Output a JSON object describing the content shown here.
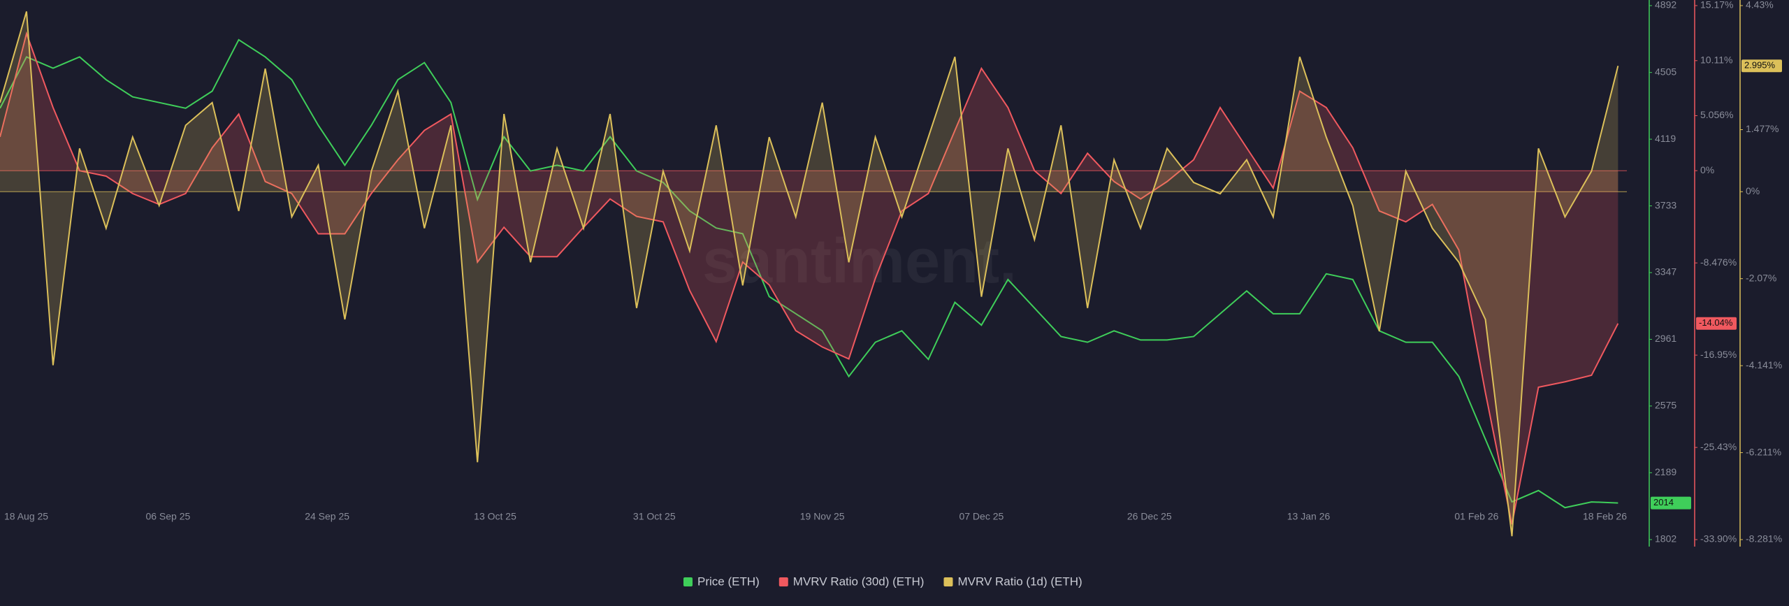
{
  "chart_data": {
    "type": "line",
    "watermark": "santiment.",
    "x": [
      "2025-08-18",
      "2025-08-21",
      "2025-08-24",
      "2025-08-27",
      "2025-08-30",
      "2025-09-02",
      "2025-09-05",
      "2025-09-08",
      "2025-09-11",
      "2025-09-14",
      "2025-09-17",
      "2025-09-20",
      "2025-09-23",
      "2025-09-26",
      "2025-09-29",
      "2025-10-02",
      "2025-10-05",
      "2025-10-08",
      "2025-10-11",
      "2025-10-14",
      "2025-10-17",
      "2025-10-20",
      "2025-10-23",
      "2025-10-26",
      "2025-10-29",
      "2025-11-01",
      "2025-11-04",
      "2025-11-07",
      "2025-11-10",
      "2025-11-13",
      "2025-11-16",
      "2025-11-19",
      "2025-11-22",
      "2025-11-25",
      "2025-11-28",
      "2025-12-01",
      "2025-12-04",
      "2025-12-07",
      "2025-12-10",
      "2025-12-13",
      "2025-12-16",
      "2025-12-19",
      "2025-12-22",
      "2025-12-25",
      "2025-12-28",
      "2025-12-31",
      "2026-01-03",
      "2026-01-06",
      "2026-01-09",
      "2026-01-12",
      "2026-01-15",
      "2026-01-18",
      "2026-01-21",
      "2026-01-24",
      "2026-01-27",
      "2026-01-30",
      "2026-02-02",
      "2026-02-05",
      "2026-02-08",
      "2026-02-11",
      "2026-02-14",
      "2026-02-17"
    ],
    "xlim": [
      "2025-08-18",
      "2026-02-18"
    ],
    "xticks": [
      {
        "value": "2025-08-18",
        "label": "18 Aug 25"
      },
      {
        "value": "2025-09-06",
        "label": "06 Sep 25"
      },
      {
        "value": "2025-09-24",
        "label": "24 Sep 25"
      },
      {
        "value": "2025-10-13",
        "label": "13 Oct 25"
      },
      {
        "value": "2025-10-31",
        "label": "31 Oct 25"
      },
      {
        "value": "2025-11-19",
        "label": "19 Nov 25"
      },
      {
        "value": "2025-12-07",
        "label": "07 Dec 25"
      },
      {
        "value": "2025-12-26",
        "label": "26 Dec 25"
      },
      {
        "value": "2026-01-13",
        "label": "13 Jan 26"
      },
      {
        "value": "2026-02-01",
        "label": "01 Feb 26"
      },
      {
        "value": "2026-02-18",
        "label": "18 Feb 26"
      }
    ],
    "ylim": [
      1802,
      4892
    ],
    "yticks": [
      4892,
      4505,
      4119,
      3733,
      3347,
      2961,
      2575,
      2189,
      1802
    ],
    "y2lim": [
      -33.9,
      15.17
    ],
    "y2ticks": [
      {
        "value": 15.17,
        "label": "15.17%"
      },
      {
        "value": 10.11,
        "label": "10.11%"
      },
      {
        "value": 5.056,
        "label": "5.056%"
      },
      {
        "value": 0,
        "label": "0%"
      },
      {
        "value": -8.476,
        "label": "-8.476%"
      },
      {
        "value": -16.95,
        "label": "-16.95%"
      },
      {
        "value": -25.43,
        "label": "-25.43%"
      },
      {
        "value": -33.9,
        "label": "-33.90%"
      }
    ],
    "y3lim": [
      -8.281,
      4.43
    ],
    "y3ticks": [
      {
        "value": 4.43,
        "label": "4.43%"
      },
      {
        "value": 1.477,
        "label": "1.477%"
      },
      {
        "value": 0,
        "label": "0%"
      },
      {
        "value": -2.07,
        "label": "-2.07%"
      },
      {
        "value": -4.141,
        "label": "-4.141%"
      },
      {
        "value": -6.211,
        "label": "-6.211%"
      },
      {
        "value": -8.281,
        "label": "-8.281%"
      }
    ],
    "series": [
      {
        "name": "Price (ETH)",
        "color": "#3fce5a",
        "axis": "y",
        "last_value_label": "2014",
        "values": [
          4298,
          4595,
          4530,
          4595,
          4463,
          4364,
          4331,
          4298,
          4397,
          4694,
          4595,
          4463,
          4199,
          3968,
          4199,
          4463,
          4562,
          4331,
          3770,
          4133,
          3935,
          3968,
          3935,
          4133,
          3935,
          3869,
          3704,
          3605,
          3572,
          3208,
          3109,
          3010,
          2746,
          2944,
          3010,
          2845,
          3175,
          3043,
          3307,
          3142,
          2977,
          2944,
          3010,
          2957,
          2957,
          2977,
          3109,
          3241,
          3109,
          3109,
          3340,
          3307,
          3010,
          2944,
          2944,
          2746,
          2383,
          2020,
          2086,
          1987,
          2020,
          2014
        ]
      },
      {
        "name": "MVRV Ratio (30d) (ETH)",
        "color": "#f0595f",
        "axis": "y2",
        "last_value_label": "-14.04%",
        "values": [
          3.1,
          12.6,
          5.8,
          0,
          -0.5,
          -2.1,
          -3.1,
          -2.1,
          2.1,
          5.2,
          -1,
          -2.1,
          -5.8,
          -5.8,
          -2.1,
          1,
          3.7,
          5.2,
          -8.4,
          -5.2,
          -7.9,
          -7.9,
          -5.2,
          -2.6,
          -4.2,
          -4.7,
          -11,
          -15.7,
          -8.4,
          -10.5,
          -14.7,
          -16.2,
          -17.3,
          -9.9,
          -3.7,
          -2.1,
          3.7,
          9.4,
          5.8,
          0,
          -2.1,
          1.6,
          -1,
          -2.6,
          -1,
          1,
          5.8,
          2.1,
          -1.6,
          7.3,
          5.8,
          2.1,
          -3.7,
          -4.7,
          -3.1,
          -7.3,
          -20.4,
          -32.5,
          -19.9,
          -19.4,
          -18.8,
          -14.04
        ]
      },
      {
        "name": "MVRV Ratio (1d) (ETH)",
        "color": "#dcc05a",
        "axis": "y3",
        "last_value_label": "2.995%",
        "values": [
          2.12,
          4.29,
          -4.13,
          1.03,
          -0.87,
          1.3,
          -0.33,
          1.58,
          2.12,
          -0.46,
          2.93,
          -0.6,
          0.63,
          -3.04,
          0.49,
          2.39,
          -0.87,
          1.58,
          -6.44,
          1.85,
          -1.68,
          1.03,
          -0.87,
          1.85,
          -2.77,
          0.49,
          -1.41,
          1.58,
          -2.23,
          1.3,
          -0.6,
          2.12,
          -1.68,
          1.3,
          -0.6,
          1.3,
          3.21,
          -2.5,
          1.03,
          -1.14,
          1.58,
          -2.77,
          0.76,
          -0.87,
          1.03,
          0.22,
          -0.05,
          0.76,
          -0.6,
          3.21,
          1.3,
          -0.33,
          -3.32,
          0.49,
          -0.87,
          -1.68,
          -3.04,
          -8.2,
          1.03,
          -0.6,
          0.49,
          2.995
        ]
      }
    ]
  }
}
